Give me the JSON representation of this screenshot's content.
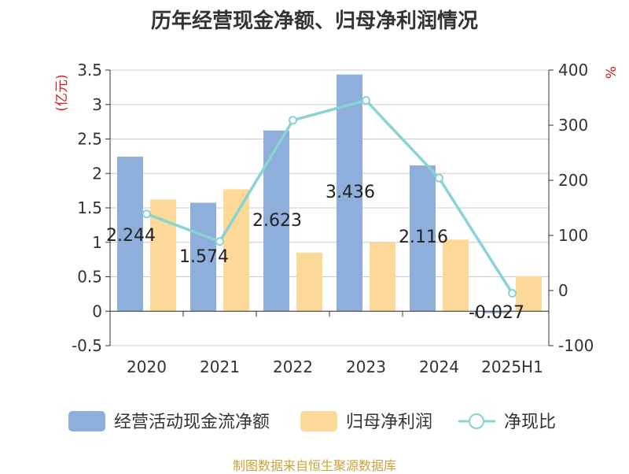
{
  "chart_data": {
    "type": "bar",
    "title": "历年经营现金净额、归母净利润情况",
    "categories": [
      "2020",
      "2021",
      "2022",
      "2023",
      "2024",
      "2025H1"
    ],
    "y_left": {
      "label": "(亿元)",
      "min": -0.5,
      "max": 3.5,
      "ticks": [
        "-0.5",
        "0",
        "0.5",
        "1",
        "1.5",
        "2",
        "2.5",
        "3",
        "3.5"
      ]
    },
    "y_right": {
      "label": "%",
      "min": -100,
      "max": 400,
      "ticks": [
        "-100",
        "0",
        "100",
        "200",
        "300",
        "400"
      ]
    },
    "series": [
      {
        "name": "经营活动现金流净额",
        "type": "bar",
        "axis": "left",
        "color": "#8eaedc",
        "values": [
          2.244,
          1.574,
          2.623,
          3.436,
          2.116,
          -0.027
        ],
        "labels": [
          "2.244",
          "1.574",
          "2.623",
          "3.436",
          "2.116",
          "-0.027"
        ]
      },
      {
        "name": "归母净利润",
        "type": "bar",
        "axis": "left",
        "color": "#fdd999",
        "values": [
          1.62,
          1.77,
          0.85,
          1.0,
          1.04,
          0.51
        ]
      },
      {
        "name": "净现比",
        "type": "line",
        "axis": "right",
        "color": "#88d3d3",
        "values": [
          139,
          89,
          309,
          345,
          204,
          -5
        ]
      }
    ],
    "grid": true,
    "legend": "bottom"
  },
  "source": "制图数据来自恒生聚源数据库"
}
